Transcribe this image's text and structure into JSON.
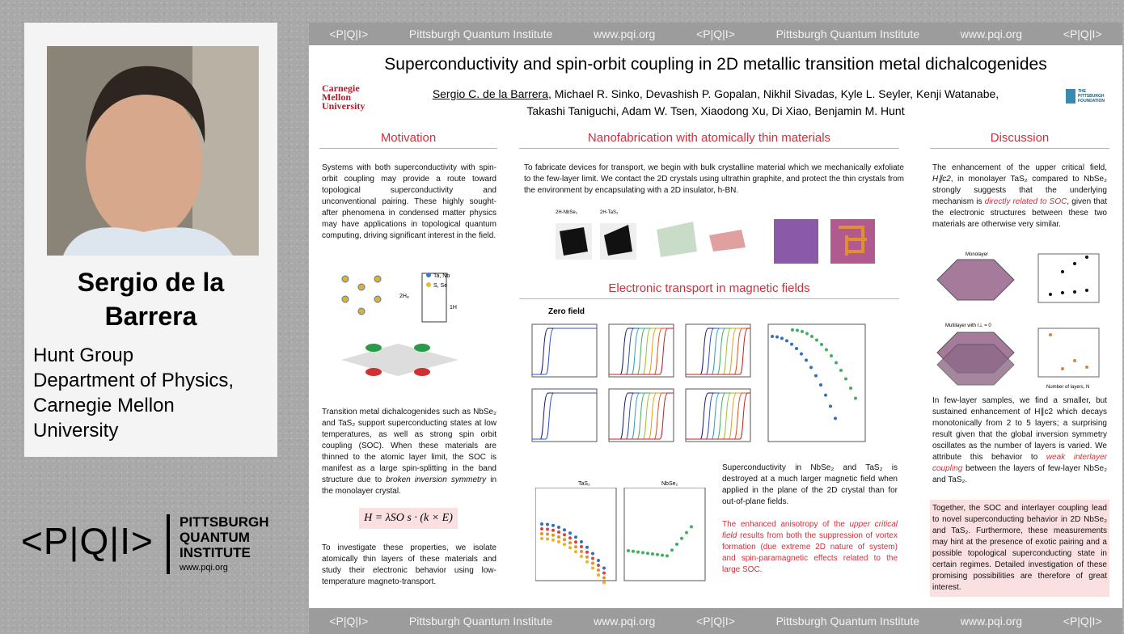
{
  "speaker": {
    "name": "Sergio de la Barrera",
    "affiliation": [
      "Hunt Group",
      "Department of Physics,",
      "Carnegie Mellon",
      "University"
    ],
    "logo": {
      "mark": "<P|Q|I>",
      "lines": [
        "PITTSBURGH",
        "QUANTUM",
        "INSTITUTE"
      ],
      "url": "www.pqi.org"
    }
  },
  "poster": {
    "strip": [
      "<P|Q|I>",
      "Pittsburgh Quantum Institute",
      "www.pqi.org"
    ],
    "title": "Superconductivity and spin-orbit coupling in 2D metallic transition metal dichalcogenides",
    "cmu": [
      "Carnegie",
      "Mellon",
      "University"
    ],
    "foundation": [
      "THE",
      "PITTSBURGH",
      "FOUNDATION"
    ],
    "authors": [
      "Sergio C. de la Barrera",
      ", Michael R. Sinko, Devashish P. Gopalan, Nikhil Sivadas, Kyle L. Seyler, Kenji Watanabe,",
      "Takashi Taniguchi, Adam W. Tsen, Xiaodong Xu, Di Xiao, Benjamin M. Hunt"
    ],
    "motivation": {
      "heading": "Motivation",
      "p1": "Systems with both superconductivity with spin-orbit coupling may provide a route toward topological superconductivity and unconventional pairing. These highly sought-after phenomena in condensed matter physics may have applications in topological quantum computing, driving significant interest in the field.",
      "fig": [
        "Ta, Nb",
        "S, Se",
        "2Hₐ",
        "1H"
      ],
      "p2": [
        "Transition metal dichalcogenides such as NbSe₂ and TaS₂ support superconducting states at low temperatures, as well as strong spin orbit coupling (SOC). When these materials are thinned to the atomic layer limit, the SOC is manifest as a large spin-splitting in the band structure due to ",
        "broken inversion symmetry",
        " in the monolayer crystal."
      ],
      "equation": "H = λSO s · (k × E)",
      "p3": "To investigate these properties, we isolate atomically thin layers of these materials and study their electronic behavior using low-temperature magneto-transport."
    },
    "nanofab": {
      "heading": "Nanofabrication with atomically thin materials",
      "p1": "To fabricate devices for transport, we begin with bulk crystalline material which we mechanically exfoliate to the few-layer limit. We contact the 2D crystals using ultrathin graphite, and protect the thin crystals from the environment by encapsulating with a 2D insulator, h-BN.",
      "labels": [
        "2H-NbSe₂",
        "2H-TaS₂"
      ]
    },
    "transport": {
      "heading": "Electronic transport in magnetic fields",
      "zero": "Zero field",
      "bottom_labels": [
        "TaS₂",
        "NbSe₂"
      ],
      "p1": "Superconductivity in NbSe₂ and TaS₂ is destroyed at a much larger magnetic field when applied in the plane of the 2D crystal than for out-of-plane fields.",
      "p2": [
        "The enhanced anisotropy of the ",
        "upper critical field",
        " results from both the suppression of vortex formation (due extreme 2D nature of system) and spin-paramagnetic effects related to the large SOC."
      ]
    },
    "discussion": {
      "heading": "Discussion",
      "p1": [
        "The enhancement of the upper critical field, ",
        "H∥c2",
        ", in monolayer TaS₂ compared to NbSe₂ strongly suggests that the underlying mechanism is ",
        "directly related to SOC",
        ", given that the electronic structures between these two materials are otherwise very similar."
      ],
      "fig": [
        "Monolayer",
        "Multilayer with I⊥ = 0",
        "Number of layers, N"
      ],
      "p2": [
        "In few-layer samples, we find a smaller, but sustained enhancement of H∥c2 which decays monotonically from 2 to 5 layers; a surprising result given that the global inversion symmetry oscillates as the number of layers is varied. We attribute this behavior to ",
        "weak interlayer coupling",
        " between the layers of few-layer NbSe₂ and TaS₂."
      ],
      "p3": "Together, the SOC and interlayer coupling lead to novel superconducting behavior in 2D NbSe₂ and TaS₂. Furthermore, these measurements may hint at the presence of exotic pairing and a possible topological superconducting state in certain regimes. Detailed investigation of these promising possibilities are therefore of great interest."
    }
  }
}
